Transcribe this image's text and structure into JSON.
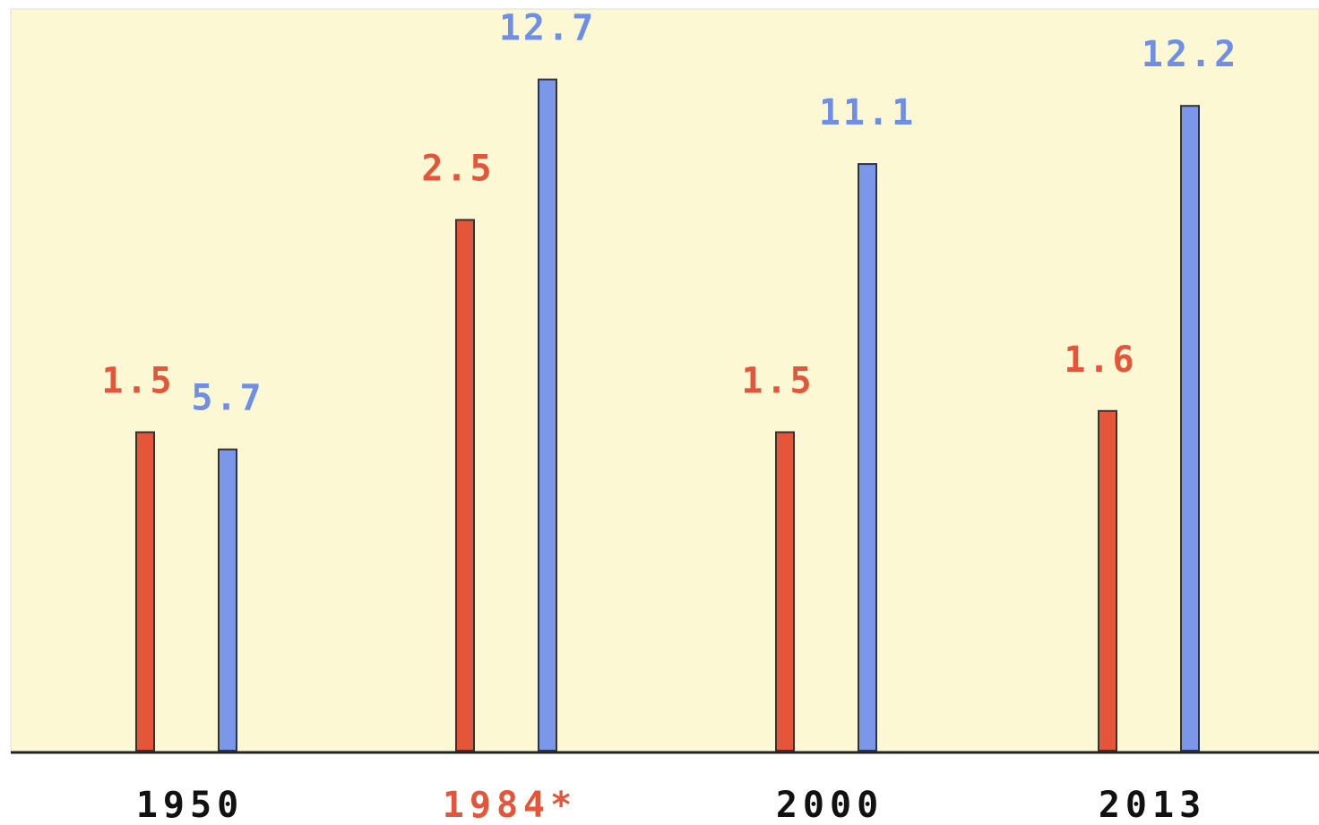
{
  "chart_data": {
    "type": "bar",
    "categories": [
      "1950",
      "1984*",
      "2000",
      "2013"
    ],
    "series": [
      {
        "values": [
          1.5,
          2.5,
          1.5,
          1.6
        ],
        "labels": [
          "1.5",
          "2.5",
          "1.5",
          "1.6"
        ]
      },
      {
        "values": [
          5.7,
          12.7,
          11.1,
          12.2
        ],
        "labels": [
          "5.7",
          "12.7",
          "11.1",
          "12.2"
        ]
      }
    ],
    "highlighted_category": "1984*",
    "title": "",
    "xlabel": "",
    "ylabel": "",
    "grid": false,
    "colors": {
      "series_0": "#e4553a",
      "series_1": "#7b97ea",
      "series_0_label": "#e4553a",
      "series_1_label": "#6f8ee6",
      "tick_default": "#111111",
      "tick_highlight": "#e4553a",
      "plot_background": "#fcf8d3",
      "axis": "#222222"
    }
  }
}
